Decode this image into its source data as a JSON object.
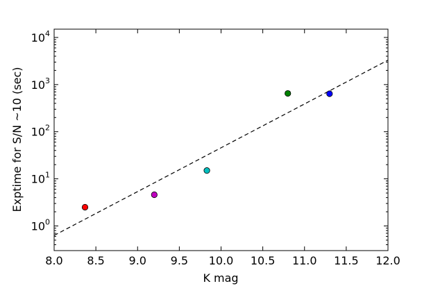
{
  "chart_data": {
    "type": "scatter",
    "xlabel": "K mag",
    "ylabel": "Exptime for S/N ~10 (sec)",
    "xlim": [
      8.0,
      12.0
    ],
    "ylim": [
      0.3,
      15000
    ],
    "yscale": "log",
    "grid": false,
    "x_ticks": [
      "8.0",
      "8.5",
      "9.0",
      "9.5",
      "10.0",
      "10.5",
      "11.0",
      "11.5",
      "12.0"
    ],
    "y_ticks": [
      {
        "base": "10",
        "exp": "0",
        "value": 1
      },
      {
        "base": "10",
        "exp": "1",
        "value": 10
      },
      {
        "base": "10",
        "exp": "2",
        "value": 100
      },
      {
        "base": "10",
        "exp": "3",
        "value": 1000
      },
      {
        "base": "10",
        "exp": "4",
        "value": 10000
      }
    ],
    "points": [
      {
        "x": 8.37,
        "y": 2.5,
        "color": "#ff0000"
      },
      {
        "x": 9.2,
        "y": 4.6,
        "color": "#bf00bf"
      },
      {
        "x": 9.83,
        "y": 15,
        "color": "#00bfbf"
      },
      {
        "x": 10.8,
        "y": 650,
        "color": "#008000"
      },
      {
        "x": 11.3,
        "y": 640,
        "color": "#0000ff"
      }
    ],
    "fit_line": {
      "style": "dashed",
      "color": "#000000",
      "x": [
        8.0,
        12.0
      ],
      "y": [
        0.63,
        3300
      ]
    }
  }
}
